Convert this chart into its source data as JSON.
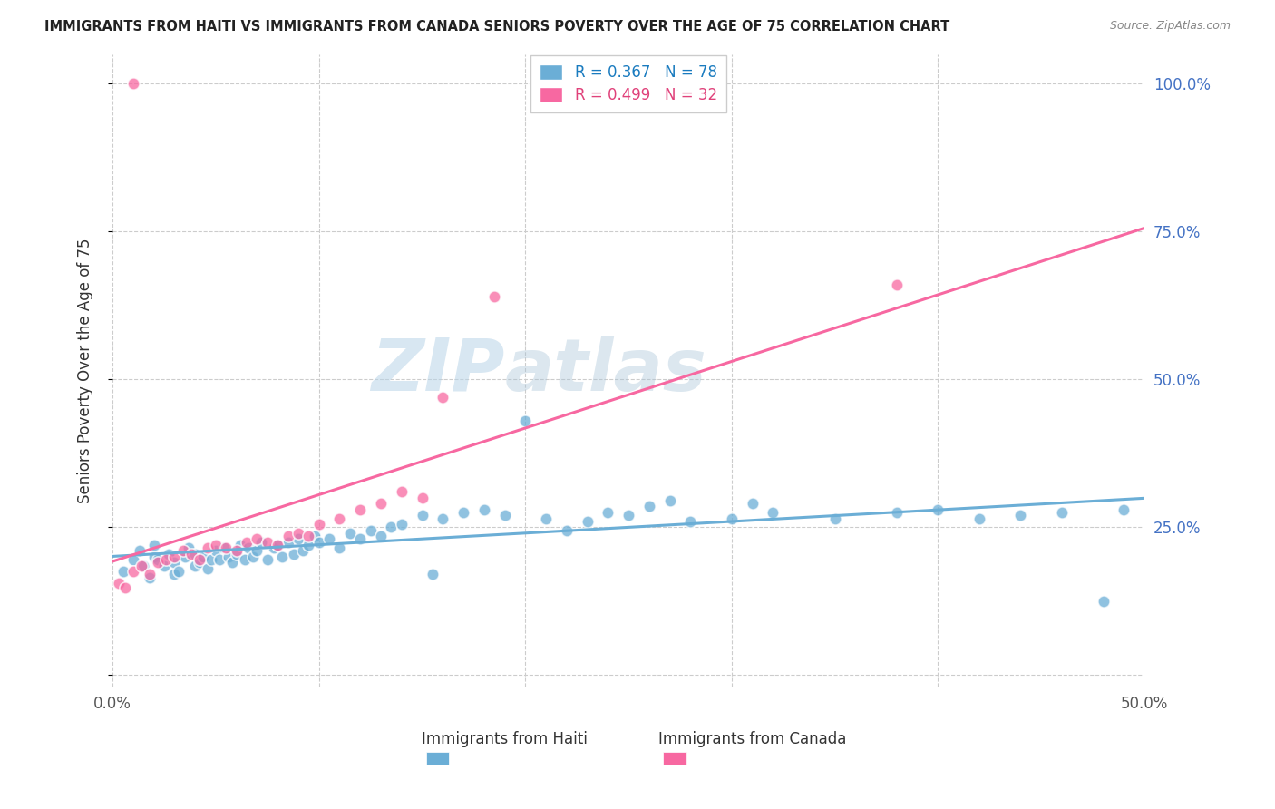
{
  "title": "IMMIGRANTS FROM HAITI VS IMMIGRANTS FROM CANADA SENIORS POVERTY OVER THE AGE OF 75 CORRELATION CHART",
  "source": "Source: ZipAtlas.com",
  "ylabel": "Seniors Poverty Over the Age of 75",
  "xlabel_haiti": "Immigrants from Haiti",
  "xlabel_canada": "Immigrants from Canada",
  "xlim": [
    0.0,
    0.5
  ],
  "ylim": [
    -0.02,
    1.05
  ],
  "ytick_vals": [
    0.0,
    0.25,
    0.5,
    0.75,
    1.0
  ],
  "ytick_labels": [
    "",
    "25.0%",
    "50.0%",
    "75.0%",
    "100.0%"
  ],
  "xtick_vals": [
    0.0,
    0.1,
    0.2,
    0.3,
    0.4,
    0.5
  ],
  "xtick_labels": [
    "0.0%",
    "",
    "",
    "",
    "",
    "50.0%"
  ],
  "R_haiti": 0.367,
  "N_haiti": 78,
  "R_canada": 0.499,
  "N_canada": 32,
  "color_haiti": "#6baed6",
  "color_canada": "#f768a1",
  "haiti_scatter_x": [
    0.005,
    0.01,
    0.013,
    0.015,
    0.018,
    0.02,
    0.02,
    0.022,
    0.025,
    0.027,
    0.03,
    0.03,
    0.032,
    0.035,
    0.037,
    0.04,
    0.04,
    0.042,
    0.044,
    0.046,
    0.048,
    0.05,
    0.052,
    0.054,
    0.056,
    0.058,
    0.06,
    0.062,
    0.064,
    0.066,
    0.068,
    0.07,
    0.072,
    0.075,
    0.078,
    0.08,
    0.082,
    0.085,
    0.088,
    0.09,
    0.092,
    0.095,
    0.098,
    0.1,
    0.105,
    0.11,
    0.115,
    0.12,
    0.125,
    0.13,
    0.135,
    0.14,
    0.15,
    0.155,
    0.16,
    0.17,
    0.18,
    0.19,
    0.2,
    0.21,
    0.22,
    0.23,
    0.24,
    0.25,
    0.26,
    0.27,
    0.28,
    0.3,
    0.31,
    0.32,
    0.35,
    0.38,
    0.4,
    0.42,
    0.44,
    0.46,
    0.48,
    0.49
  ],
  "haiti_scatter_y": [
    0.175,
    0.195,
    0.21,
    0.185,
    0.165,
    0.2,
    0.22,
    0.195,
    0.185,
    0.205,
    0.17,
    0.19,
    0.175,
    0.2,
    0.215,
    0.185,
    0.205,
    0.19,
    0.2,
    0.18,
    0.195,
    0.21,
    0.195,
    0.215,
    0.2,
    0.19,
    0.205,
    0.22,
    0.195,
    0.215,
    0.2,
    0.21,
    0.225,
    0.195,
    0.215,
    0.22,
    0.2,
    0.225,
    0.205,
    0.23,
    0.21,
    0.22,
    0.235,
    0.225,
    0.23,
    0.215,
    0.24,
    0.23,
    0.245,
    0.235,
    0.25,
    0.255,
    0.27,
    0.17,
    0.265,
    0.275,
    0.28,
    0.27,
    0.43,
    0.265,
    0.245,
    0.26,
    0.275,
    0.27,
    0.285,
    0.295,
    0.26,
    0.265,
    0.29,
    0.275,
    0.265,
    0.275,
    0.28,
    0.265,
    0.27,
    0.275,
    0.125,
    0.28
  ],
  "canada_scatter_x": [
    0.003,
    0.006,
    0.01,
    0.014,
    0.018,
    0.022,
    0.026,
    0.03,
    0.034,
    0.038,
    0.042,
    0.046,
    0.05,
    0.055,
    0.06,
    0.065,
    0.07,
    0.075,
    0.08,
    0.085,
    0.09,
    0.095,
    0.1,
    0.11,
    0.12,
    0.13,
    0.14,
    0.15,
    0.16,
    0.185,
    0.38,
    0.01
  ],
  "canada_scatter_y": [
    0.155,
    0.148,
    0.175,
    0.185,
    0.17,
    0.19,
    0.195,
    0.2,
    0.21,
    0.205,
    0.195,
    0.215,
    0.22,
    0.215,
    0.21,
    0.225,
    0.23,
    0.225,
    0.22,
    0.235,
    0.24,
    0.235,
    0.255,
    0.265,
    0.28,
    0.29,
    0.31,
    0.3,
    0.47,
    0.64,
    0.66,
    1.0
  ]
}
